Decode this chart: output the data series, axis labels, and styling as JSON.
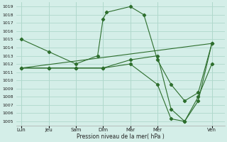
{
  "title": "Pression niveau de la mer( hPa )",
  "background_color": "#d4eee8",
  "grid_color": "#b0d8cc",
  "line_color": "#2d6e2d",
  "ylim": [
    1004.5,
    1019.5
  ],
  "yticks": [
    1005,
    1006,
    1007,
    1008,
    1009,
    1010,
    1011,
    1012,
    1013,
    1014,
    1015,
    1016,
    1017,
    1018,
    1019
  ],
  "xlabel_days": [
    "Lun",
    "Jeu",
    "Sam",
    "Dim",
    "Mar",
    "Mer",
    "Ven"
  ],
  "xtick_positions": [
    0,
    1.5,
    3,
    4.5,
    6,
    7.5,
    10.5
  ],
  "xlim": [
    -0.3,
    11.2
  ],
  "series": [
    {
      "x": [
        0,
        1.5,
        3,
        4.2,
        4.5,
        4.7,
        6,
        6.75,
        7.5,
        8.25,
        9,
        9.75,
        10.5
      ],
      "y": [
        1015,
        1013.5,
        1012,
        1013,
        1017.5,
        1018.3,
        1019.0,
        1018.0,
        1012.5,
        1009.5,
        1007.5,
        1008.5,
        1014.5
      ]
    },
    {
      "x": [
        0,
        1.5,
        3,
        4.5,
        6,
        7.5,
        8.25,
        9,
        9.75,
        10.5
      ],
      "y": [
        1011.5,
        1011.5,
        1011.5,
        1011.5,
        1012.5,
        1013,
        1006.5,
        1005.0,
        1007.5,
        1014.5
      ]
    },
    {
      "x": [
        0,
        1.5,
        3,
        4.5,
        6,
        7.5,
        8.25,
        9,
        9.75,
        10.5
      ],
      "y": [
        1011.5,
        1011.5,
        1011.5,
        1011.5,
        1012.0,
        1009.5,
        1005.3,
        1005.0,
        1008.0,
        1012.0
      ]
    },
    {
      "x": [
        0,
        10.5
      ],
      "y": [
        1011.5,
        1014.5
      ]
    }
  ]
}
